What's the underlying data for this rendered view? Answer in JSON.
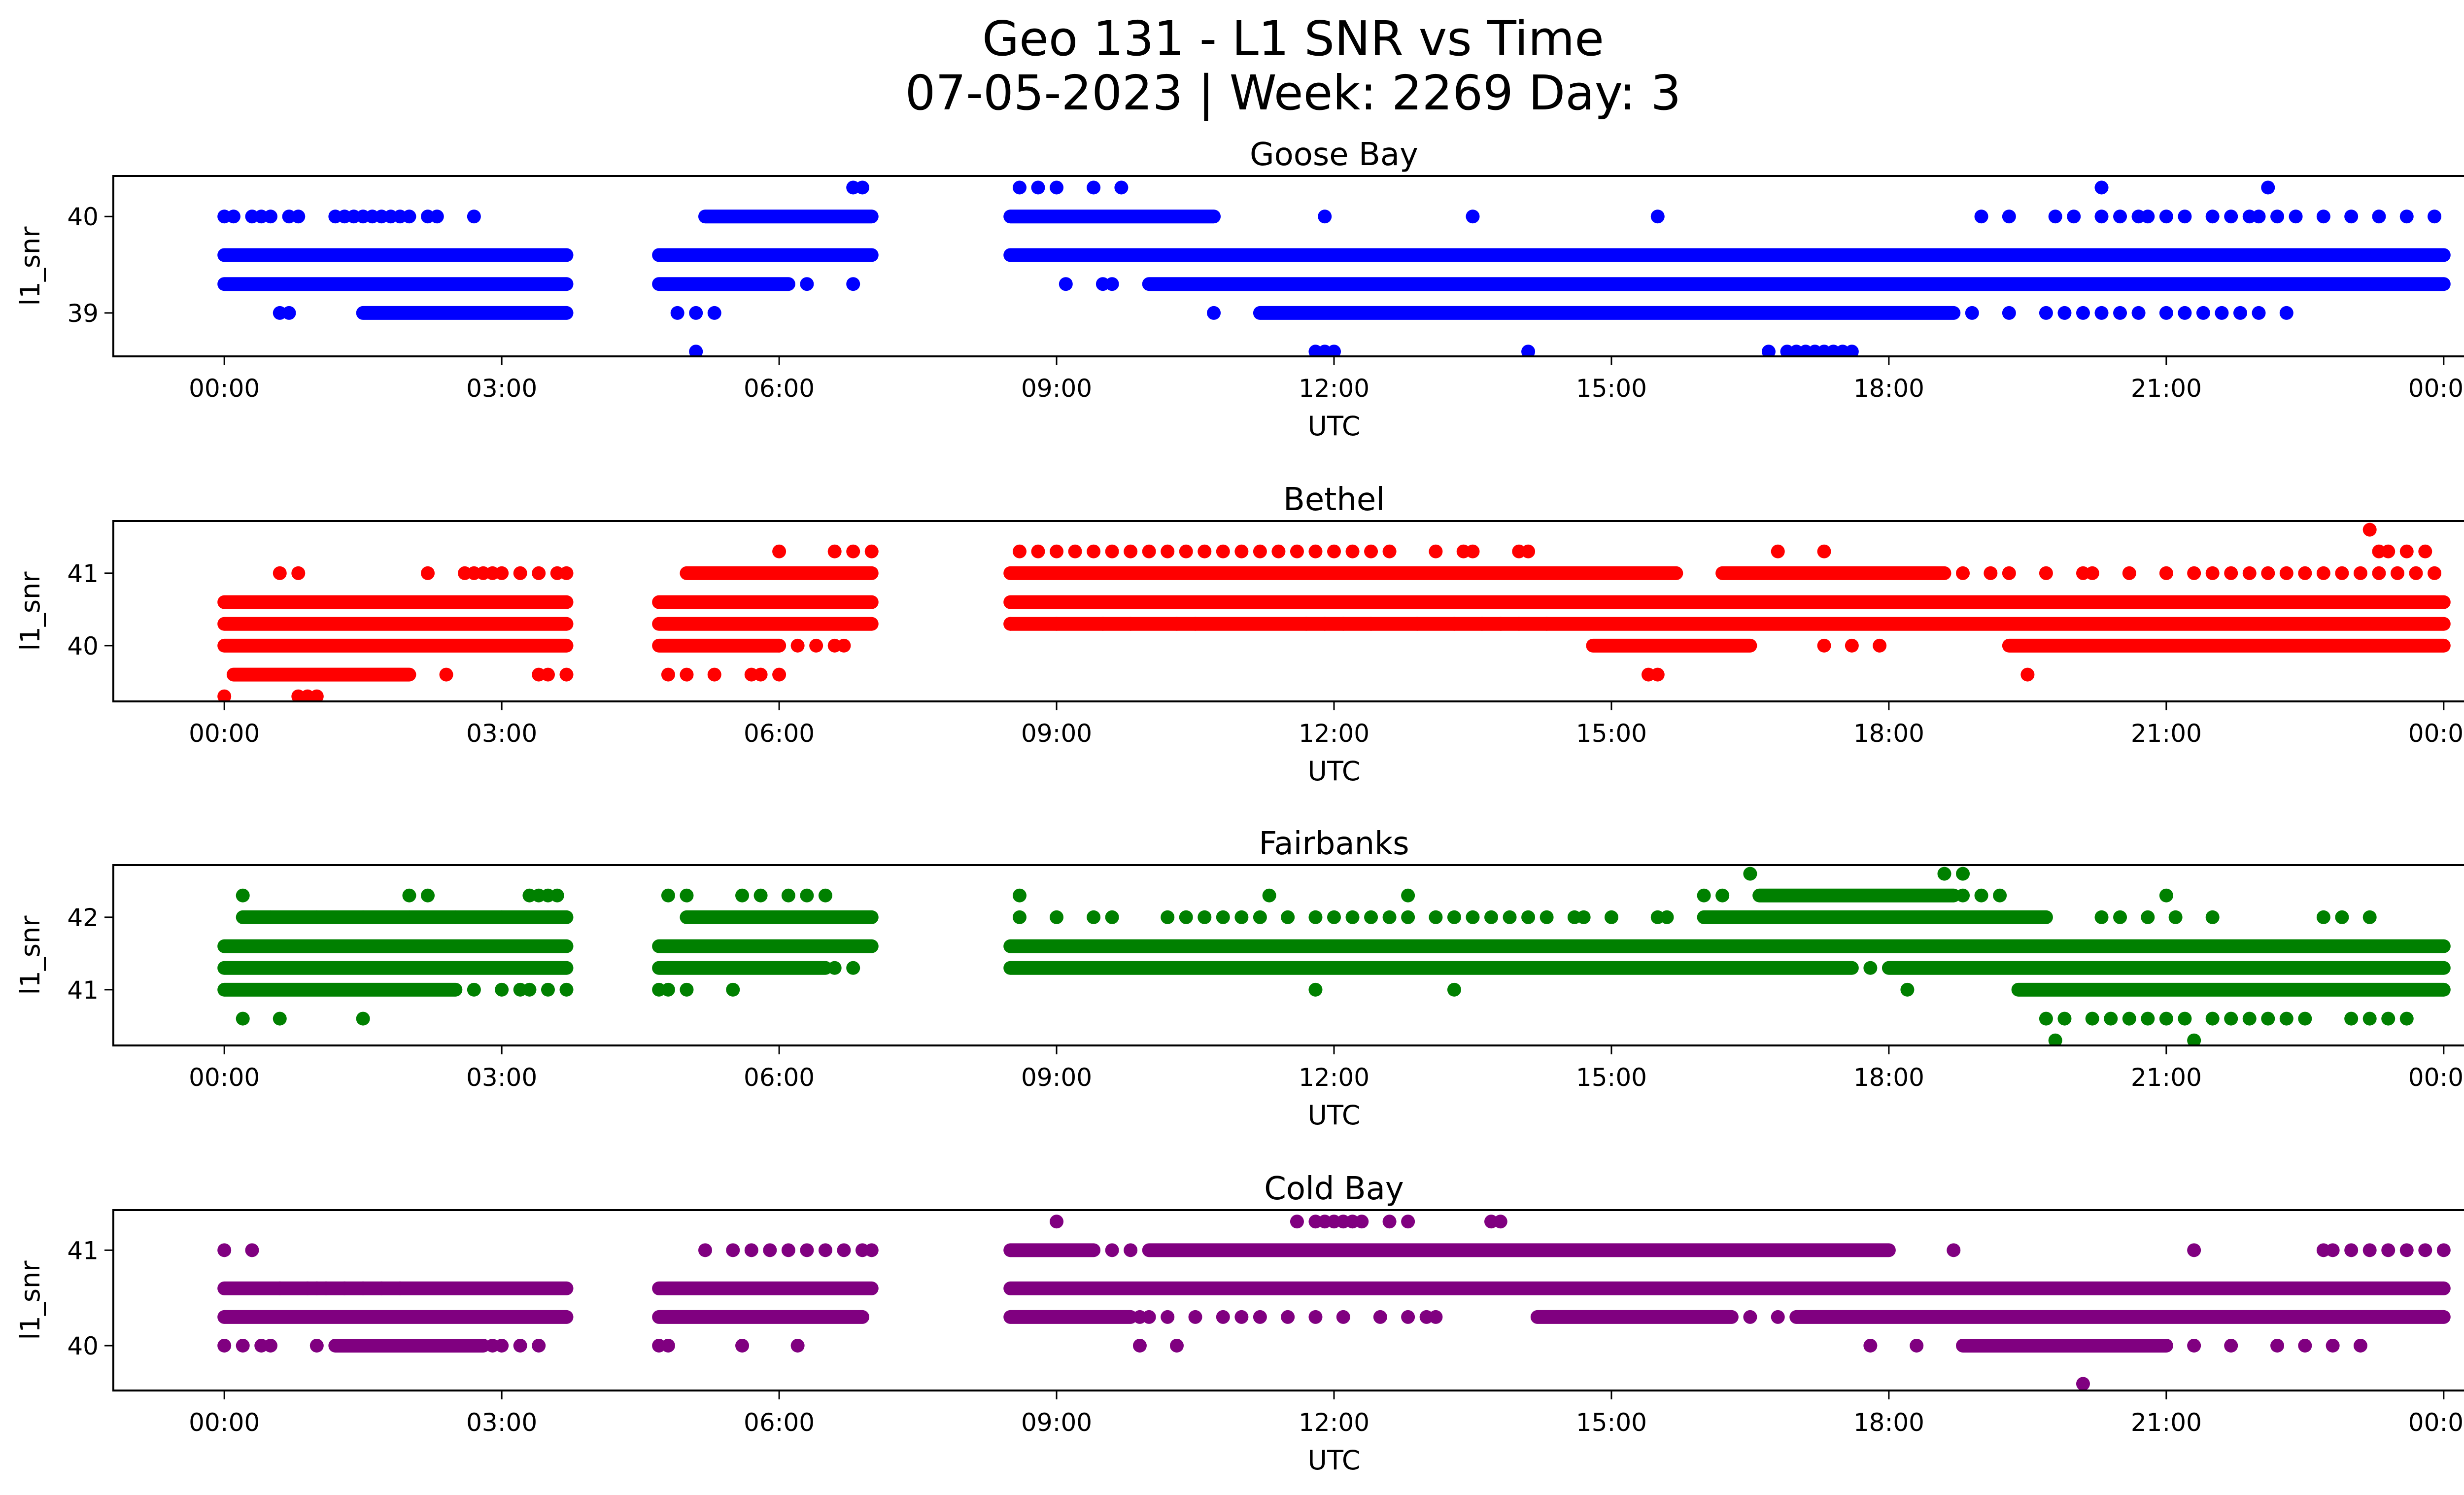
{
  "figure": {
    "title_line1": "Geo 131 - L1 SNR vs Time",
    "title_line2": "07-05-2023 | Week: 2269 Day: 3"
  },
  "chart_data": [
    {
      "type": "scatter",
      "title": "Goose Bay",
      "xlabel": "UTC",
      "ylabel": "l1_snr",
      "color": "#0000ff",
      "xlim": [
        -1.2,
        25.2
      ],
      "ylim": [
        38.55,
        40.42
      ],
      "yticks": [
        39,
        40
      ],
      "xtick_labels": [
        "00:00",
        "03:00",
        "06:00",
        "09:00",
        "12:00",
        "15:00",
        "18:00",
        "21:00",
        "00:00"
      ],
      "bands": [
        {
          "y": 39.6,
          "segments": [
            [
              0.0,
              3.7
            ],
            [
              4.7,
              7.0
            ],
            [
              8.5,
              24.0
            ]
          ]
        },
        {
          "y": 39.3,
          "segments": [
            [
              0.0,
              3.7
            ],
            [
              4.7,
              6.1
            ],
            [
              10.0,
              24.0
            ]
          ]
        },
        {
          "y": 39.0,
          "segments": [
            [
              1.5,
              3.7
            ],
            [
              11.2,
              18.7
            ]
          ]
        },
        {
          "y": 40.0,
          "segments": [
            [
              5.2,
              7.0
            ],
            [
              8.5,
              10.7
            ]
          ]
        }
      ],
      "points": [
        {
          "y": 40.0,
          "x": [
            0.0,
            0.1,
            0.3,
            0.4,
            0.5,
            0.7,
            0.8,
            1.2,
            1.3,
            1.4,
            1.5,
            1.6,
            1.7,
            1.8,
            1.9,
            2.0,
            2.2,
            2.3,
            2.7,
            11.9,
            13.5,
            15.5,
            19.0,
            19.3,
            19.8,
            20.0,
            20.3,
            20.5,
            20.7,
            20.8,
            21.0,
            21.2,
            21.5,
            21.7,
            21.9,
            22.0,
            22.2,
            22.4,
            22.7,
            23.0,
            23.3,
            23.6,
            23.9
          ]
        },
        {
          "y": 39.3,
          "x": [
            6.3,
            6.8,
            9.1,
            9.5,
            9.6
          ]
        },
        {
          "y": 39.0,
          "x": [
            0.6,
            0.7,
            4.9,
            5.1,
            5.3,
            10.7,
            18.9,
            19.3,
            19.7,
            19.9,
            20.1,
            20.3,
            20.5,
            20.7,
            21.0,
            21.2,
            21.4,
            21.6,
            21.8,
            22.0,
            22.3
          ]
        },
        {
          "y": 38.6,
          "x": [
            5.1,
            11.8,
            11.9,
            12.0,
            14.1,
            16.7,
            16.9,
            17.0,
            17.1,
            17.2,
            17.3,
            17.4,
            17.5,
            17.6
          ]
        },
        {
          "y": 40.3,
          "x": [
            6.8,
            6.9,
            8.6,
            8.8,
            9.0,
            9.4,
            9.7,
            20.3,
            22.1
          ]
        }
      ]
    },
    {
      "type": "scatter",
      "title": "Bethel",
      "xlabel": "UTC",
      "ylabel": "l1_snr",
      "color": "#ff0000",
      "xlim": [
        -1.2,
        25.2
      ],
      "ylim": [
        39.23,
        41.72
      ],
      "yticks": [
        40,
        41
      ],
      "xtick_labels": [
        "00:00",
        "03:00",
        "06:00",
        "09:00",
        "12:00",
        "15:00",
        "18:00",
        "21:00",
        "00:00"
      ],
      "bands": [
        {
          "y": 40.6,
          "segments": [
            [
              0.0,
              3.7
            ],
            [
              4.7,
              7.0
            ],
            [
              8.5,
              24.0
            ]
          ]
        },
        {
          "y": 40.3,
          "segments": [
            [
              0.0,
              3.7
            ],
            [
              4.7,
              7.0
            ],
            [
              8.5,
              24.0
            ]
          ]
        },
        {
          "y": 40.0,
          "segments": [
            [
              0.0,
              3.7
            ],
            [
              4.7,
              6.0
            ],
            [
              14.8,
              16.5
            ],
            [
              19.3,
              24.0
            ]
          ]
        },
        {
          "y": 41.0,
          "segments": [
            [
              5.0,
              7.0
            ],
            [
              8.5,
              15.7
            ],
            [
              16.2,
              18.6
            ]
          ]
        },
        {
          "y": 39.6,
          "segments": [
            [
              0.1,
              2.0
            ]
          ]
        }
      ],
      "points": [
        {
          "y": 41.3,
          "x": [
            6.0,
            6.6,
            6.8,
            7.0,
            8.6,
            8.8,
            9.0,
            9.2,
            9.4,
            9.6,
            9.8,
            10.0,
            10.2,
            10.4,
            10.6,
            10.8,
            11.0,
            11.2,
            11.4,
            11.6,
            11.8,
            12.0,
            12.2,
            12.4,
            12.6,
            13.1,
            13.4,
            13.5,
            14.0,
            14.1,
            16.8,
            17.3,
            23.3,
            23.4,
            23.6,
            23.8
          ]
        },
        {
          "y": 41.0,
          "x": [
            0.6,
            0.8,
            2.2,
            2.6,
            2.7,
            2.8,
            2.9,
            3.0,
            3.2,
            3.4,
            3.6,
            3.7,
            18.8,
            19.1,
            19.3,
            19.7,
            20.1,
            20.2,
            20.6,
            21.0,
            21.3,
            21.5,
            21.7,
            21.9,
            22.1,
            22.3,
            22.5,
            22.7,
            22.9,
            23.1,
            23.3,
            23.5,
            23.7,
            23.9
          ]
        },
        {
          "y": 40.3,
          "x": [
            8.5,
            9.0,
            9.5,
            9.8,
            10.3,
            10.5,
            11.7,
            11.9,
            12.1,
            12.4,
            12.9,
            13.3,
            13.6,
            13.8,
            14.0,
            14.3
          ]
        },
        {
          "y": 40.0,
          "x": [
            6.0,
            6.2,
            6.4,
            6.6,
            6.7,
            17.3,
            17.6,
            17.9
          ]
        },
        {
          "y": 39.6,
          "x": [
            2.4,
            3.4,
            3.5,
            3.7,
            4.8,
            5.0,
            5.3,
            5.7,
            5.8,
            6.0,
            15.4,
            15.5,
            19.5
          ]
        },
        {
          "y": 39.3,
          "x": [
            0.0,
            0.8,
            0.9,
            1.0
          ]
        },
        {
          "y": 41.6,
          "x": [
            23.2
          ]
        }
      ]
    },
    {
      "type": "scatter",
      "title": "Fairbanks",
      "xlabel": "UTC",
      "ylabel": "l1_snr",
      "color": "#008000",
      "xlim": [
        -1.2,
        25.2
      ],
      "ylim": [
        40.23,
        42.72
      ],
      "yticks": [
        41,
        42
      ],
      "xtick_labels": [
        "00:00",
        "03:00",
        "06:00",
        "09:00",
        "12:00",
        "15:00",
        "18:00",
        "21:00",
        "00:00"
      ],
      "bands": [
        {
          "y": 41.6,
          "segments": [
            [
              0.0,
              3.7
            ],
            [
              4.7,
              7.0
            ],
            [
              8.5,
              24.0
            ]
          ]
        },
        {
          "y": 41.3,
          "segments": [
            [
              0.0,
              3.7
            ],
            [
              4.7,
              6.5
            ],
            [
              8.5,
              17.6
            ],
            [
              18.0,
              24.0
            ]
          ]
        },
        {
          "y": 41.0,
          "segments": [
            [
              0.0,
              2.5
            ],
            [
              19.4,
              24.0
            ]
          ]
        },
        {
          "y": 42.0,
          "segments": [
            [
              0.2,
              3.7
            ],
            [
              5.0,
              7.0
            ],
            [
              16.0,
              19.7
            ]
          ]
        },
        {
          "y": 42.3,
          "segments": [
            [
              16.6,
              18.7
            ]
          ]
        }
      ],
      "points": [
        {
          "y": 42.0,
          "x": [
            0.5,
            1.0,
            1.5,
            2.0,
            2.5,
            3.0,
            3.5,
            8.6,
            9.0,
            9.4,
            9.6,
            10.2,
            10.4,
            10.6,
            10.8,
            11.0,
            11.2,
            11.5,
            11.8,
            12.0,
            12.2,
            12.4,
            12.6,
            12.8,
            13.1,
            13.3,
            13.5,
            13.7,
            13.9,
            14.1,
            14.3,
            14.6,
            14.7,
            15.0,
            15.5,
            15.6,
            20.3,
            20.5,
            20.8,
            21.1,
            21.5,
            22.7,
            22.9,
            23.2
          ]
        },
        {
          "y": 42.3,
          "x": [
            0.2,
            2.0,
            2.2,
            3.3,
            3.4,
            3.5,
            3.6,
            4.8,
            5.0,
            5.6,
            5.8,
            6.1,
            6.3,
            6.5,
            8.6,
            11.3,
            12.8,
            16.0,
            16.2,
            18.8,
            19.0,
            19.2,
            21.0
          ]
        },
        {
          "y": 42.6,
          "x": [
            16.5,
            18.6,
            18.8
          ]
        },
        {
          "y": 41.3,
          "x": [
            6.6,
            6.8,
            17.8
          ]
        },
        {
          "y": 41.0,
          "x": [
            2.7,
            3.0,
            3.2,
            3.3,
            3.5,
            3.7,
            4.7,
            4.8,
            5.0,
            5.5,
            11.8,
            13.3,
            18.2
          ]
        },
        {
          "y": 40.6,
          "x": [
            0.2,
            0.6,
            1.5,
            19.7,
            19.9,
            20.2,
            20.4,
            20.6,
            20.8,
            21.0,
            21.2,
            21.5,
            21.7,
            21.9,
            22.1,
            22.3,
            22.5,
            23.0,
            23.2,
            23.4,
            23.6
          ]
        },
        {
          "y": 40.3,
          "x": [
            19.8,
            21.3
          ]
        }
      ]
    },
    {
      "type": "scatter",
      "title": "Cold Bay",
      "xlabel": "UTC",
      "ylabel": "l1_snr",
      "color": "#800080",
      "xlim": [
        -1.2,
        25.2
      ],
      "ylim": [
        39.53,
        41.42
      ],
      "yticks": [
        40,
        41
      ],
      "xtick_labels": [
        "00:00",
        "03:00",
        "06:00",
        "09:00",
        "12:00",
        "15:00",
        "18:00",
        "21:00",
        "00:00"
      ],
      "bands": [
        {
          "y": 40.6,
          "segments": [
            [
              0.0,
              3.7
            ],
            [
              4.7,
              7.0
            ],
            [
              8.5,
              24.0
            ]
          ]
        },
        {
          "y": 40.3,
          "segments": [
            [
              0.0,
              3.7
            ],
            [
              4.7,
              6.9
            ],
            [
              8.5,
              9.8
            ],
            [
              14.2,
              16.3
            ],
            [
              17.0,
              24.0
            ]
          ]
        },
        {
          "y": 41.0,
          "segments": [
            [
              8.5,
              9.4
            ],
            [
              10.0,
              18.0
            ]
          ]
        },
        {
          "y": 40.0,
          "segments": [
            [
              1.2,
              2.8
            ],
            [
              18.8,
              21.0
            ]
          ]
        }
      ],
      "points": [
        {
          "y": 41.0,
          "x": [
            0.0,
            0.3,
            5.2,
            5.5,
            5.7,
            5.9,
            6.1,
            6.3,
            6.5,
            6.7,
            6.9,
            7.0,
            9.6,
            9.8,
            18.7,
            21.3,
            22.7,
            22.8,
            23.0,
            23.2,
            23.4,
            23.6,
            23.8,
            24.0
          ]
        },
        {
          "y": 41.3,
          "x": [
            9.0,
            11.6,
            11.8,
            11.9,
            12.0,
            12.1,
            12.2,
            12.3,
            12.6,
            12.8,
            13.7,
            13.8
          ]
        },
        {
          "y": 40.6,
          "x": [
            0.6,
            0.9,
            1.0,
            1.1,
            1.3,
            1.5,
            1.7,
            1.9
          ]
        },
        {
          "y": 40.3,
          "x": [
            9.9,
            10.0,
            10.2,
            10.5,
            10.8,
            11.0,
            11.2,
            11.5,
            11.8,
            12.1,
            12.5,
            12.8,
            13.0,
            13.1,
            16.5,
            16.8
          ]
        },
        {
          "y": 40.0,
          "x": [
            0.0,
            0.2,
            0.4,
            0.5,
            1.0,
            2.9,
            3.0,
            3.2,
            3.4,
            4.7,
            4.8,
            5.6,
            6.2,
            9.9,
            10.3,
            17.8,
            18.3,
            21.3,
            21.7,
            22.2,
            22.5,
            22.8,
            23.1
          ]
        },
        {
          "y": 39.6,
          "x": [
            20.1
          ]
        }
      ]
    }
  ]
}
